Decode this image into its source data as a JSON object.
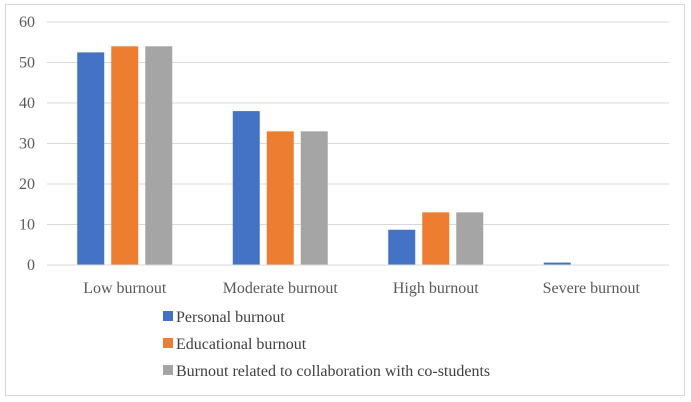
{
  "chart_data": {
    "type": "bar",
    "title": "",
    "xlabel": "",
    "ylabel": "",
    "categories": [
      "Low burnout",
      "Moderate burnout",
      "High burnout",
      "Severe burnout"
    ],
    "series": [
      {
        "name": "Personal burnout",
        "values": [
          52.5,
          38,
          8.7,
          0.6
        ],
        "color": "#4472c4"
      },
      {
        "name": "Educational burnout",
        "values": [
          54,
          33,
          13,
          0
        ],
        "color": "#ed7d31"
      },
      {
        "name": "Burnout related to collaboration with co-students",
        "values": [
          54,
          33,
          13,
          0
        ],
        "color": "#a5a5a5"
      }
    ],
    "ylim": [
      0,
      60
    ],
    "yticks": [
      0,
      10,
      20,
      30,
      40,
      50,
      60
    ],
    "grid": true,
    "legend_position": "bottom-left"
  }
}
